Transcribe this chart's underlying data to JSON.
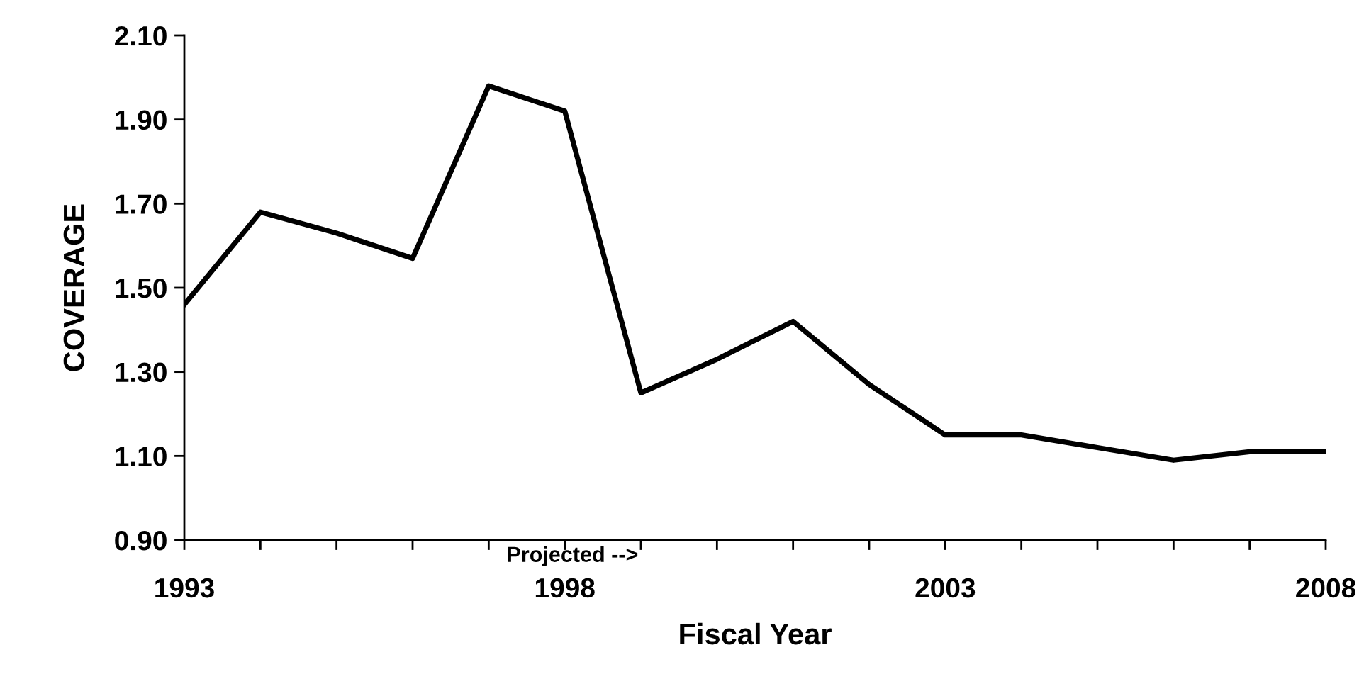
{
  "chart_data": {
    "type": "line",
    "xlabel": "Fiscal Year",
    "ylabel": "COVERAGE",
    "x": [
      1993,
      1994,
      1995,
      1996,
      1997,
      1998,
      1999,
      2000,
      2001,
      2002,
      2003,
      2004,
      2005,
      2006,
      2007,
      2008
    ],
    "series": [
      {
        "color": "#000000",
        "values": [
          1.46,
          1.68,
          1.63,
          1.57,
          1.98,
          1.92,
          1.25,
          1.33,
          1.42,
          1.27,
          1.15,
          1.15,
          1.12,
          1.09,
          1.11,
          1.11
        ]
      }
    ],
    "xlim": [
      1993,
      2008
    ],
    "xticks": [
      1993,
      {
        "value": 1994,
        "label": null
      },
      {
        "value": 1995,
        "label": null
      },
      {
        "value": 1996,
        "label": null
      },
      {
        "value": 1997,
        "label": null
      },
      1998,
      {
        "value": 1999,
        "label": null
      },
      {
        "value": 2000,
        "label": null
      },
      {
        "value": 2001,
        "label": null
      },
      {
        "value": 2002,
        "label": null
      },
      2003,
      {
        "value": 2004,
        "label": null
      },
      {
        "value": 2005,
        "label": null
      },
      {
        "value": 2006,
        "label": null
      },
      {
        "value": 2007,
        "label": null
      },
      2008
    ],
    "ylim": [
      0.9,
      2.1
    ],
    "yticks": [
      {
        "value": 0.9,
        "label": "0.90"
      },
      {
        "value": 1.1,
        "label": "1.10"
      },
      {
        "value": 1.3,
        "label": "1.30"
      },
      {
        "value": 1.5,
        "label": "1.50"
      },
      {
        "value": 1.7,
        "label": "1.70"
      },
      {
        "value": 1.9,
        "label": "1.90"
      },
      {
        "value": 2.1,
        "label": "2.10"
      }
    ],
    "annotations": [
      "Projected -->"
    ],
    "grid": false,
    "legend": false,
    "line_style": "solid",
    "marker": "none"
  }
}
